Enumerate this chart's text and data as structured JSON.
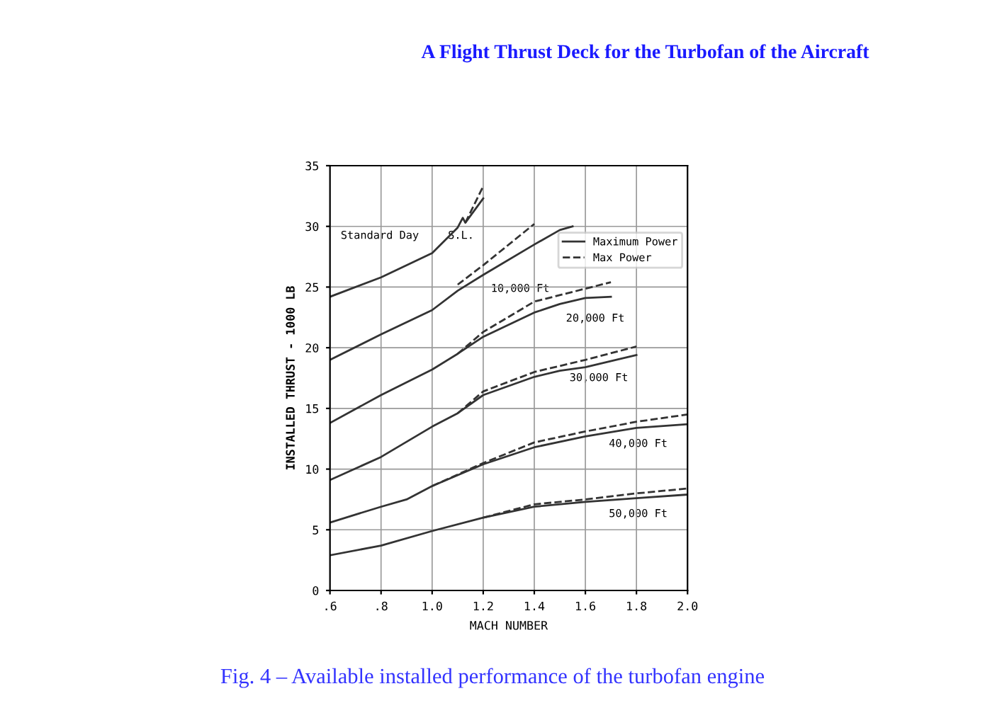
{
  "chart_data": {
    "type": "line",
    "title": "A Flight Thrust Deck for the Turbofan of the Aircraft",
    "xlabel": "MACH NUMBER",
    "ylabel": "INSTALLED THRUST - 1000 LB",
    "xlim": [
      0.6,
      2.0
    ],
    "xticks": [
      {
        "value": 0.6,
        "label": ".6"
      },
      {
        "value": 0.8,
        "label": ".8"
      },
      {
        "value": 1.0,
        "label": "1.0"
      },
      {
        "value": 1.2,
        "label": "1.2"
      },
      {
        "value": 1.4,
        "label": "1.4"
      },
      {
        "value": 1.6,
        "label": "1.6"
      },
      {
        "value": 1.8,
        "label": "1.8"
      },
      {
        "value": 2.0,
        "label": "2.0"
      }
    ],
    "ylim": [
      0,
      35
    ],
    "yticks": [
      0,
      5,
      10,
      15,
      20,
      25,
      30,
      35
    ],
    "grid": true,
    "legend": "top right",
    "series": [
      {
        "name": "Maximum Power",
        "color": "#333333",
        "line_style": "solid",
        "x": [
          0.6,
          0.8,
          1.0,
          1.1,
          1.12,
          1.13,
          1.2
        ],
        "values": [
          24.2,
          25.8,
          27.8,
          29.9,
          30.7,
          30.3,
          32.3
        ]
      },
      {
        "name": "Max Power",
        "color": "#333333",
        "line_style": "dashed",
        "x": [
          1.13,
          1.2
        ],
        "values": [
          30.3,
          33.3
        ]
      },
      {
        "color": "#333333",
        "line_style": "solid",
        "x": [
          0.6,
          0.8,
          1.0,
          1.1,
          1.2,
          1.4,
          1.5,
          1.55
        ],
        "values": [
          19.0,
          21.1,
          23.1,
          24.7,
          26.0,
          28.5,
          29.7,
          30.0
        ]
      },
      {
        "color": "#333333",
        "line_style": "dashed",
        "x": [
          1.1,
          1.2,
          1.4
        ],
        "values": [
          25.2,
          26.8,
          30.2
        ]
      },
      {
        "color": "#333333",
        "line_style": "solid",
        "x": [
          0.6,
          0.8,
          1.0,
          1.1,
          1.2,
          1.4,
          1.5,
          1.6,
          1.7
        ],
        "values": [
          13.8,
          16.1,
          18.2,
          19.5,
          20.9,
          22.9,
          23.6,
          24.1,
          24.2
        ]
      },
      {
        "color": "#333333",
        "line_style": "dashed",
        "x": [
          1.1,
          1.2,
          1.4,
          1.7
        ],
        "values": [
          19.5,
          21.3,
          23.8,
          25.4
        ]
      },
      {
        "color": "#333333",
        "line_style": "solid",
        "x": [
          0.6,
          0.8,
          1.0,
          1.1,
          1.2,
          1.4,
          1.5,
          1.6,
          1.8
        ],
        "values": [
          9.1,
          11.0,
          13.5,
          14.6,
          16.1,
          17.6,
          18.1,
          18.4,
          19.4
        ]
      },
      {
        "color": "#333333",
        "line_style": "dashed",
        "x": [
          1.1,
          1.2,
          1.4,
          1.6,
          1.8
        ],
        "values": [
          14.6,
          16.4,
          18.0,
          19.0,
          20.1
        ]
      },
      {
        "color": "#333333",
        "line_style": "solid",
        "x": [
          0.6,
          0.8,
          0.9,
          1.0,
          1.2,
          1.4,
          1.6,
          1.8,
          2.0
        ],
        "values": [
          5.6,
          6.9,
          7.5,
          8.6,
          10.4,
          11.8,
          12.7,
          13.4,
          13.7
        ]
      },
      {
        "color": "#333333",
        "line_style": "dashed",
        "x": [
          1.0,
          1.2,
          1.4,
          1.6,
          1.8,
          2.0
        ],
        "values": [
          8.6,
          10.5,
          12.2,
          13.1,
          13.9,
          14.5
        ]
      },
      {
        "color": "#333333",
        "line_style": "solid",
        "x": [
          0.6,
          0.8,
          1.0,
          1.2,
          1.4,
          1.6,
          1.8,
          2.0
        ],
        "values": [
          2.9,
          3.7,
          4.9,
          6.0,
          6.9,
          7.3,
          7.6,
          7.9
        ]
      },
      {
        "color": "#333333",
        "line_style": "dashed",
        "x": [
          1.2,
          1.4,
          1.6,
          1.8,
          2.0
        ],
        "values": [
          6.0,
          7.1,
          7.5,
          8.0,
          8.4
        ]
      }
    ],
    "annotations": [
      "Standard Day",
      "S.L.",
      "10,000 Ft",
      "20,000 Ft",
      "30,000 Ft",
      "40,000 Ft",
      "50,000 Ft",
      "Fig. 4 – Available installed performance of the turbofan engine"
    ]
  }
}
